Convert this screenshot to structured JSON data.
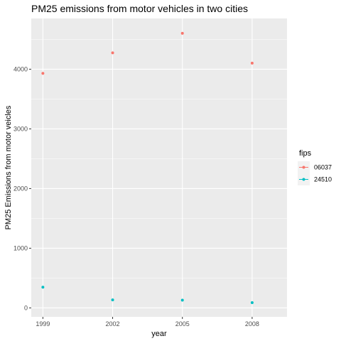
{
  "chart_data": {
    "type": "line",
    "title": "PM25 emissions from motor vehicles in two cities",
    "xlabel": "year",
    "ylabel": "PM25 Emissions from motor veicles",
    "categories": [
      "1999",
      "2002",
      "2005",
      "2008"
    ],
    "x": [
      1999,
      2002,
      2005,
      2008
    ],
    "xlim": [
      1998.5,
      2009.5
    ],
    "ylim": [
      -150,
      4850
    ],
    "yticks": [
      0,
      1000,
      2000,
      3000,
      4000
    ],
    "grid": true,
    "legend_placement": "right",
    "legend_title": "fips",
    "series": [
      {
        "name": "06037",
        "color": "#F8766D",
        "values": [
          3931,
          4274,
          4601,
          4101
        ]
      },
      {
        "name": "24510",
        "color": "#00BFC4",
        "values": [
          347,
          134,
          130,
          88
        ]
      }
    ]
  },
  "colors": {
    "panel_background": "#EBEBEB",
    "grid_major": "#FFFFFF",
    "tick_text": "#4D4D4D"
  }
}
